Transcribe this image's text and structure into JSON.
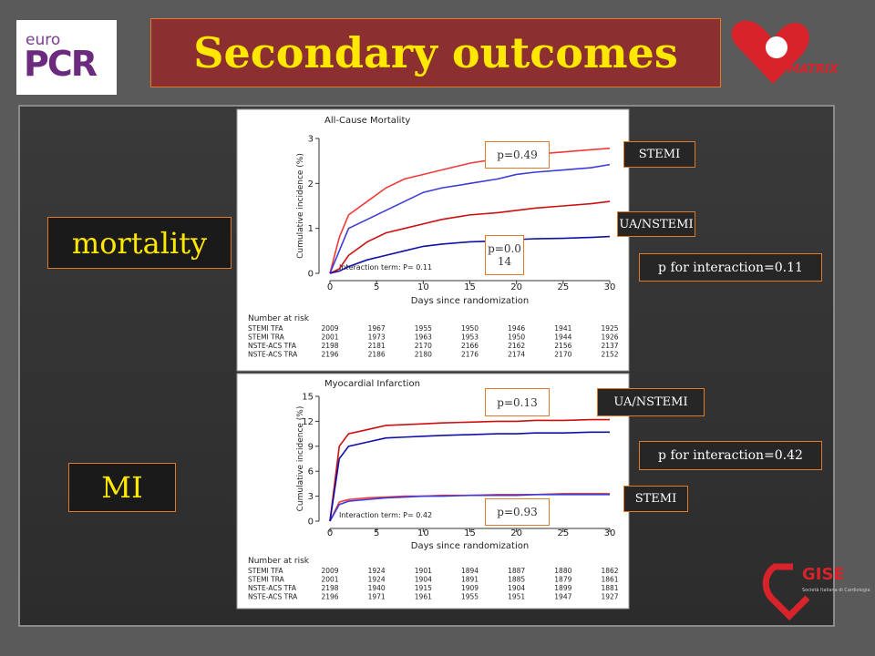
{
  "header": {
    "title": "Secondary outcomes"
  },
  "logos": {
    "euro": "euro",
    "pcr": "PCR",
    "matrix": "MATRIX",
    "gise": "GISE",
    "gise_sub": "Società Italiana di Cardiologia"
  },
  "side_labels": [
    "mortality",
    "MI"
  ],
  "callouts": [
    {
      "text": "p=0.49"
    },
    {
      "text": "STEMI"
    },
    {
      "text": "UA/NSTEMI"
    },
    {
      "text": "p=0.014"
    },
    {
      "text": "p for  interaction=0.11"
    },
    {
      "text": "p=0.13"
    },
    {
      "text": "UA/NSTEMI"
    },
    {
      "text": "p for  interaction=0.42"
    },
    {
      "text": "STEMI"
    },
    {
      "text": "p=0.93"
    }
  ],
  "chart_data": [
    {
      "type": "line",
      "title": "All-Cause Mortality",
      "xlabel": "Days since randomization",
      "ylabel": "Cumulative incidence (%)",
      "annotation": "Interaction term: P= 0.11",
      "x": [
        0,
        1,
        2,
        4,
        6,
        8,
        10,
        12,
        15,
        18,
        20,
        22,
        25,
        28,
        30
      ],
      "xlim": [
        0,
        30
      ],
      "xticks": [
        0,
        5,
        10,
        15,
        20,
        25,
        30
      ],
      "ylim": [
        0,
        3
      ],
      "yticks": [
        0,
        1,
        2,
        3
      ],
      "series": [
        {
          "name": "STEMI TFA",
          "color": "#f03a3a",
          "values": [
            0,
            0.8,
            1.3,
            1.6,
            1.9,
            2.1,
            2.2,
            2.3,
            2.45,
            2.55,
            2.6,
            2.65,
            2.7,
            2.75,
            2.78
          ]
        },
        {
          "name": "STEMI TRA",
          "color": "#3c3cd8",
          "values": [
            0,
            0.5,
            1.0,
            1.2,
            1.4,
            1.6,
            1.8,
            1.9,
            2.0,
            2.1,
            2.2,
            2.25,
            2.3,
            2.35,
            2.42
          ]
        },
        {
          "name": "NSTE-ACS TFA",
          "color": "#cc1010",
          "values": [
            0,
            0.1,
            0.4,
            0.7,
            0.9,
            1.0,
            1.1,
            1.2,
            1.3,
            1.35,
            1.4,
            1.45,
            1.5,
            1.55,
            1.6
          ]
        },
        {
          "name": "NSTE-ACS TRA",
          "color": "#1010a8",
          "values": [
            0,
            0.05,
            0.15,
            0.3,
            0.4,
            0.5,
            0.6,
            0.65,
            0.7,
            0.72,
            0.75,
            0.77,
            0.78,
            0.8,
            0.82
          ]
        }
      ],
      "risk_table": {
        "title": "Number at risk",
        "rows": [
          {
            "label": "STEMI TFA",
            "values": [
              2009,
              1967,
              1955,
              1950,
              1946,
              1941,
              1925
            ]
          },
          {
            "label": "STEMI TRA",
            "values": [
              2001,
              1973,
              1963,
              1953,
              1950,
              1944,
              1926
            ]
          },
          {
            "label": "NSTE-ACS TFA",
            "values": [
              2198,
              2181,
              2170,
              2166,
              2162,
              2156,
              2137
            ]
          },
          {
            "label": "NSTE-ACS TRA",
            "values": [
              2196,
              2186,
              2180,
              2176,
              2174,
              2170,
              2152
            ]
          }
        ]
      }
    },
    {
      "type": "line",
      "title": "Myocardial Infarction",
      "xlabel": "Days since randomization",
      "ylabel": "Cumulative incidence (%)",
      "annotation": "Interaction term: P= 0.42",
      "x": [
        0,
        1,
        2,
        4,
        6,
        8,
        10,
        12,
        15,
        18,
        20,
        22,
        25,
        28,
        30
      ],
      "xlim": [
        0,
        30
      ],
      "xticks": [
        0,
        5,
        10,
        15,
        20,
        25,
        30
      ],
      "ylim": [
        0,
        15
      ],
      "yticks": [
        0,
        3,
        6,
        9,
        12,
        15
      ],
      "series": [
        {
          "name": "STEMI TFA",
          "color": "#f03a3a",
          "values": [
            0,
            2.3,
            2.6,
            2.8,
            2.9,
            3.0,
            3.0,
            3.1,
            3.1,
            3.2,
            3.2,
            3.2,
            3.3,
            3.3,
            3.3
          ]
        },
        {
          "name": "STEMI TRA",
          "color": "#3c3cd8",
          "values": [
            0,
            2.0,
            2.4,
            2.6,
            2.8,
            2.9,
            3.0,
            3.0,
            3.1,
            3.1,
            3.1,
            3.2,
            3.2,
            3.2,
            3.2
          ]
        },
        {
          "name": "NSTE-ACS TFA",
          "color": "#cc1010",
          "values": [
            0,
            9,
            10.5,
            11,
            11.5,
            11.6,
            11.7,
            11.8,
            11.9,
            12,
            12,
            12.1,
            12.1,
            12.2,
            12.2
          ]
        },
        {
          "name": "NSTE-ACS TRA",
          "color": "#1010a8",
          "values": [
            0,
            7.5,
            9,
            9.5,
            10,
            10.1,
            10.2,
            10.3,
            10.4,
            10.5,
            10.5,
            10.6,
            10.6,
            10.7,
            10.7
          ]
        }
      ],
      "risk_table": {
        "title": "Number at risk",
        "rows": [
          {
            "label": "STEMI TFA",
            "values": [
              2009,
              1924,
              1901,
              1894,
              1887,
              1880,
              1862
            ]
          },
          {
            "label": "STEMI TRA",
            "values": [
              2001,
              1924,
              1904,
              1891,
              1885,
              1879,
              1861
            ]
          },
          {
            "label": "NSTE-ACS TFA",
            "values": [
              2198,
              1940,
              1915,
              1909,
              1904,
              1899,
              1881
            ]
          },
          {
            "label": "NSTE-ACS TRA",
            "values": [
              2196,
              1971,
              1961,
              1955,
              1951,
              1947,
              1927
            ]
          }
        ]
      }
    }
  ]
}
